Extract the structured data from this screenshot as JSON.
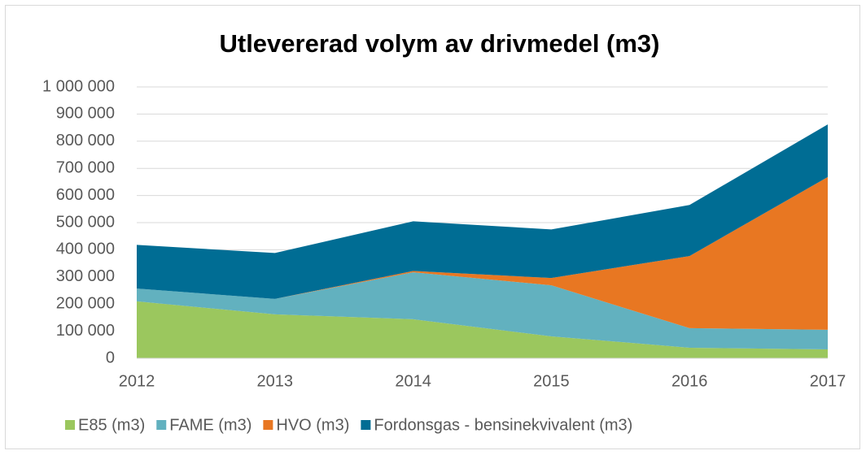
{
  "chart_data": {
    "type": "stacked_area",
    "title": "Utlevererad volym av drivmedel (m3)",
    "categories": [
      "2012",
      "2013",
      "2014",
      "2015",
      "2016",
      "2017"
    ],
    "series": [
      {
        "name": "E85 (m3)",
        "color": "#9bc75e",
        "values": [
          210000,
          162000,
          144000,
          81000,
          39000,
          33000
        ]
      },
      {
        "name": "FAME (m3)",
        "color": "#62b1bf",
        "values": [
          47000,
          57000,
          173000,
          188000,
          72000,
          72000
        ]
      },
      {
        "name": "HVO (m3)",
        "color": "#e87722",
        "values": [
          0,
          0,
          5000,
          27000,
          266000,
          563000
        ]
      },
      {
        "name": "Fordonsgas - bensinekvivalent (m3)",
        "color": "#006d94",
        "values": [
          161000,
          169000,
          183000,
          179000,
          188000,
          194000
        ]
      }
    ],
    "ylim": [
      0,
      1000000
    ],
    "yticks": [
      0,
      {
        "value": 100000,
        "label": "100 000"
      },
      {
        "value": 200000,
        "label": "200 000"
      },
      {
        "value": 300000,
        "label": "300 000"
      },
      {
        "value": 400000,
        "label": "400 000"
      },
      {
        "value": 500000,
        "label": "500 000"
      },
      {
        "value": 600000,
        "label": "600 000"
      },
      {
        "value": 700000,
        "label": "700 000"
      },
      {
        "value": 800000,
        "label": "800 000"
      },
      {
        "value": 900000,
        "label": "900 000"
      },
      {
        "value": 1000000,
        "label": "1 000 000"
      }
    ],
    "grid": true,
    "legend": "bottom"
  }
}
